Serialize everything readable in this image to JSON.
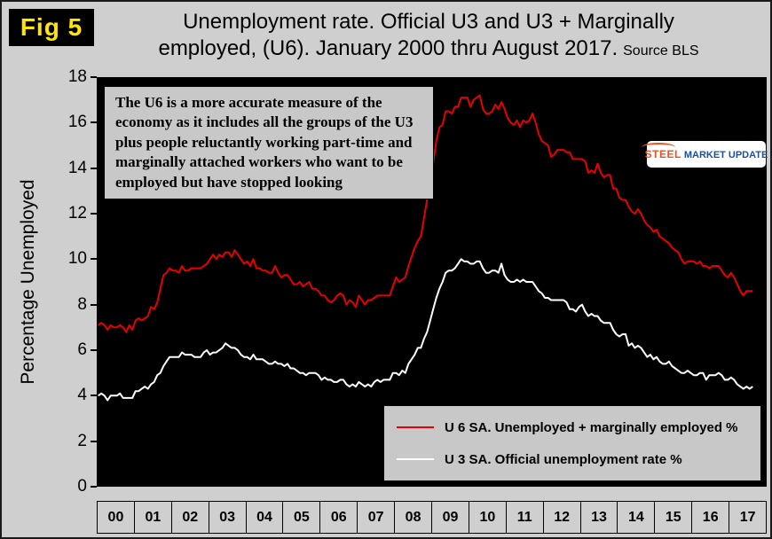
{
  "header": {
    "fig_label": "Fig 5",
    "title_line1": "Unemployment rate. Official U3 and U3 + Marginally",
    "title_line2": "employed, (U6). January 2000 thru August 2017.",
    "source": "Source BLS"
  },
  "annotation": {
    "text": "The U6 is a more accurate measure of the economy as it includes all the groups of the U3 plus people reluctantly working part-time and marginally attached workers who want to be employed but have stopped looking"
  },
  "logo": {
    "steel": "STEEL",
    "market": "MARKET",
    "update": "UPDATE"
  },
  "legend": {
    "u6_label": "U 6 SA. Unemployed + marginally employed %",
    "u3_label": "U 3 SA. Official unemployment rate %"
  },
  "colors": {
    "u6": "#e60000",
    "u3": "#ffffff",
    "plot_bg": "#000000",
    "page_bg": "#cfcfcf",
    "box_bg": "#c8c8c8",
    "fig_label": "#ffe600"
  },
  "chart_data": {
    "type": "line",
    "title": "Unemployment rate. Official U3 and U3 + Marginally employed, (U6). January 2000 thru August 2017. Source BLS",
    "ylabel": "Percentage Unemployed",
    "ylim": [
      0,
      18
    ],
    "yticks": [
      0,
      2,
      4,
      6,
      8,
      10,
      12,
      14,
      16,
      18
    ],
    "x_years": [
      "00",
      "01",
      "02",
      "03",
      "04",
      "05",
      "06",
      "07",
      "08",
      "09",
      "10",
      "11",
      "12",
      "13",
      "14",
      "15",
      "16",
      "17"
    ],
    "x_start": "2000-01",
    "x_end": "2017-08",
    "grid": false,
    "legend_position": "lower right",
    "series": [
      {
        "name": "U 6 SA. Unemployed + marginally employed %",
        "data_name": "u6-line",
        "color": "#e60000",
        "values": [
          7.1,
          7.2,
          7.1,
          6.9,
          7.1,
          7.0,
          7.0,
          7.1,
          7.0,
          6.8,
          7.1,
          6.9,
          7.3,
          7.4,
          7.3,
          7.4,
          7.5,
          7.9,
          7.8,
          8.1,
          8.7,
          9.3,
          9.4,
          9.6,
          9.5,
          9.5,
          9.4,
          9.7,
          9.5,
          9.5,
          9.6,
          9.6,
          9.6,
          9.6,
          9.7,
          9.8,
          10.0,
          10.2,
          10.0,
          10.2,
          10.1,
          10.3,
          10.3,
          10.1,
          10.4,
          10.2,
          10.0,
          9.8,
          9.9,
          9.7,
          10.0,
          9.6,
          9.6,
          9.5,
          9.5,
          9.4,
          9.4,
          9.7,
          9.4,
          9.2,
          9.3,
          9.3,
          9.1,
          8.9,
          8.9,
          9.0,
          8.8,
          8.9,
          9.0,
          8.7,
          8.7,
          8.6,
          8.4,
          8.4,
          8.2,
          8.1,
          8.2,
          8.4,
          8.5,
          8.4,
          8.0,
          8.2,
          8.1,
          7.9,
          8.4,
          8.2,
          8.0,
          8.2,
          8.2,
          8.3,
          8.4,
          8.4,
          8.4,
          8.4,
          8.4,
          8.8,
          9.2,
          9.0,
          9.1,
          9.2,
          9.7,
          10.1,
          10.5,
          10.8,
          11.0,
          11.8,
          12.6,
          13.6,
          14.2,
          15.2,
          15.8,
          15.9,
          16.5,
          16.5,
          16.4,
          16.7,
          16.7,
          17.1,
          17.1,
          17.1,
          16.7,
          17.0,
          17.1,
          17.2,
          16.6,
          16.4,
          16.4,
          16.5,
          16.8,
          16.6,
          16.9,
          16.6,
          16.2,
          16.0,
          15.9,
          16.1,
          15.8,
          16.1,
          16.0,
          16.1,
          16.4,
          16.0,
          15.5,
          15.2,
          15.1,
          15.0,
          14.5,
          14.6,
          14.8,
          14.8,
          14.8,
          14.7,
          14.7,
          14.4,
          14.4,
          14.4,
          14.4,
          14.3,
          13.8,
          13.9,
          13.8,
          14.2,
          13.8,
          13.6,
          13.7,
          13.7,
          13.1,
          13.1,
          12.7,
          12.6,
          12.6,
          12.3,
          12.1,
          12.0,
          12.2,
          12.0,
          11.7,
          11.5,
          11.4,
          11.2,
          11.3,
          11.0,
          10.9,
          10.8,
          10.7,
          10.5,
          10.4,
          10.3,
          10.0,
          9.8,
          9.9,
          9.9,
          9.9,
          9.8,
          9.9,
          9.7,
          9.7,
          9.6,
          9.7,
          9.7,
          9.7,
          9.5,
          9.3,
          9.2,
          9.4,
          9.2,
          8.9,
          8.6,
          8.4,
          8.6,
          8.6,
          8.6
        ]
      },
      {
        "name": "U 3 SA. Official unemployment rate %",
        "data_name": "u3-line",
        "color": "#ffffff",
        "values": [
          4.0,
          4.1,
          4.0,
          3.8,
          4.0,
          4.0,
          4.0,
          4.1,
          3.9,
          3.9,
          3.9,
          3.9,
          4.2,
          4.2,
          4.3,
          4.4,
          4.3,
          4.5,
          4.6,
          4.9,
          5.0,
          5.3,
          5.5,
          5.7,
          5.7,
          5.7,
          5.7,
          5.9,
          5.8,
          5.8,
          5.8,
          5.7,
          5.7,
          5.7,
          5.9,
          6.0,
          5.8,
          5.9,
          5.9,
          6.0,
          6.1,
          6.3,
          6.2,
          6.1,
          6.1,
          6.0,
          5.8,
          5.7,
          5.7,
          5.6,
          5.8,
          5.6,
          5.6,
          5.6,
          5.5,
          5.4,
          5.4,
          5.5,
          5.4,
          5.4,
          5.3,
          5.4,
          5.2,
          5.2,
          5.1,
          5.0,
          5.0,
          4.9,
          5.0,
          5.0,
          5.0,
          4.9,
          4.7,
          4.8,
          4.7,
          4.7,
          4.6,
          4.6,
          4.7,
          4.7,
          4.5,
          4.4,
          4.5,
          4.4,
          4.6,
          4.5,
          4.4,
          4.5,
          4.4,
          4.6,
          4.7,
          4.6,
          4.7,
          4.7,
          4.7,
          5.0,
          5.0,
          4.9,
          5.1,
          5.0,
          5.4,
          5.6,
          5.8,
          6.1,
          6.1,
          6.5,
          6.8,
          7.3,
          7.8,
          8.3,
          8.7,
          9.0,
          9.4,
          9.5,
          9.5,
          9.6,
          9.8,
          10.0,
          9.9,
          9.9,
          9.8,
          9.8,
          9.9,
          9.9,
          9.6,
          9.4,
          9.4,
          9.5,
          9.5,
          9.4,
          9.8,
          9.3,
          9.1,
          9.0,
          9.0,
          9.1,
          9.0,
          9.1,
          9.0,
          9.0,
          9.0,
          8.8,
          8.6,
          8.5,
          8.3,
          8.3,
          8.2,
          8.2,
          8.2,
          8.2,
          8.2,
          8.1,
          7.8,
          7.8,
          7.7,
          7.9,
          8.0,
          7.7,
          7.5,
          7.6,
          7.5,
          7.5,
          7.3,
          7.2,
          7.2,
          7.2,
          6.9,
          6.7,
          6.6,
          6.7,
          6.7,
          6.2,
          6.3,
          6.1,
          6.2,
          6.1,
          5.9,
          5.7,
          5.8,
          5.6,
          5.7,
          5.5,
          5.4,
          5.4,
          5.5,
          5.3,
          5.2,
          5.1,
          5.0,
          5.0,
          5.1,
          5.0,
          4.9,
          4.9,
          5.0,
          5.0,
          4.7,
          4.9,
          4.9,
          4.9,
          5.0,
          4.9,
          4.7,
          4.7,
          4.8,
          4.7,
          4.5,
          4.4,
          4.3,
          4.4,
          4.3,
          4.4
        ]
      }
    ]
  }
}
